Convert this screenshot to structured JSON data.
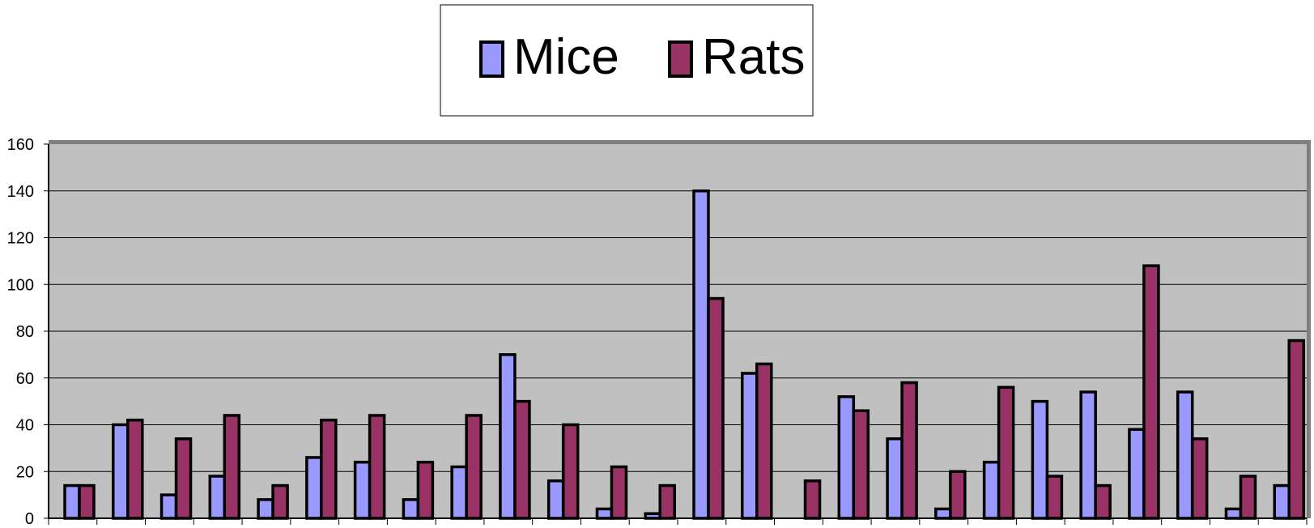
{
  "chart_data": {
    "type": "bar",
    "title": "",
    "xlabel": "",
    "ylabel": "",
    "ylim": [
      0,
      160
    ],
    "yticks": [
      0,
      20,
      40,
      60,
      80,
      100,
      120,
      140,
      160
    ],
    "grid": true,
    "legend_position": "top-center",
    "category_count": 26,
    "series": [
      {
        "name": "Mice",
        "color": "#9999ff",
        "values": [
          14,
          40,
          10,
          18,
          8,
          26,
          24,
          8,
          22,
          70,
          16,
          4,
          2,
          140,
          62,
          0,
          52,
          34,
          4,
          24,
          50,
          54,
          38,
          54,
          4,
          14
        ]
      },
      {
        "name": "Rats",
        "color": "#993366",
        "values": [
          14,
          42,
          34,
          44,
          14,
          42,
          44,
          24,
          44,
          50,
          40,
          22,
          14,
          94,
          66,
          16,
          46,
          58,
          20,
          56,
          18,
          14,
          108,
          34,
          18,
          76
        ]
      }
    ],
    "plot_background": "#c0c0c0",
    "gridline_color": "#000000"
  }
}
